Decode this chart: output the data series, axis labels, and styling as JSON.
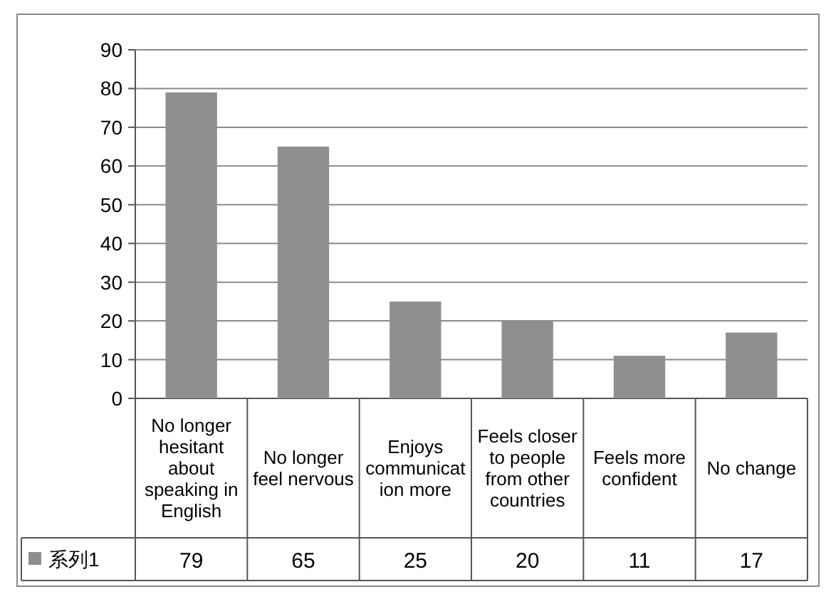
{
  "chart_data": {
    "type": "bar",
    "categories": [
      "No longer hesitant about speaking in English",
      "No longer feel nervous",
      "Enjoys communication more",
      "Feels closer to people from other countries",
      "Feels more confident",
      "No change"
    ],
    "series": [
      {
        "name": "系列1",
        "color": "#8f8f8f",
        "values": [
          79,
          65,
          25,
          20,
          11,
          17
        ]
      }
    ],
    "ylim": [
      0,
      90
    ],
    "yticks": [
      0,
      10,
      20,
      30,
      40,
      50,
      60,
      70,
      80,
      90
    ],
    "grid": "y",
    "legend": "bottom",
    "data_labels": true
  }
}
